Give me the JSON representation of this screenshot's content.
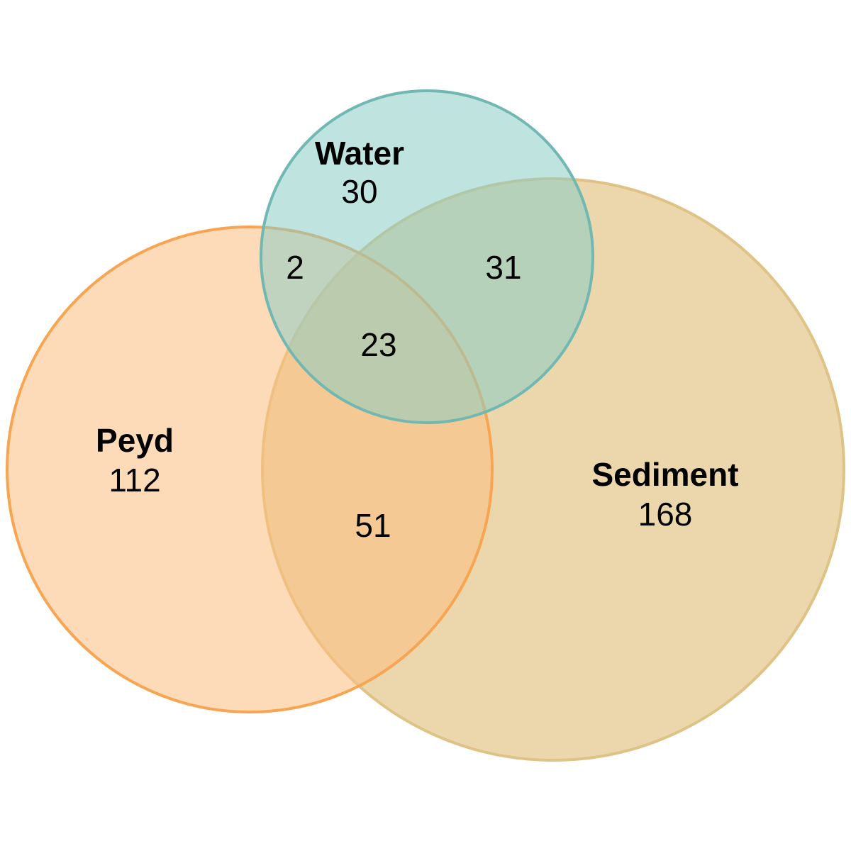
{
  "sets": [
    {
      "id": "peyd",
      "label": "Peyd",
      "only_count": "112",
      "fill": "#FDBE7E",
      "stroke": "#F7A552"
    },
    {
      "id": "sediment",
      "label": "Sediment",
      "only_count": "168",
      "fill": "#E6CA91",
      "stroke": "#DFC386"
    },
    {
      "id": "water",
      "label": "Water",
      "only_count": "30",
      "fill": "#8ACCC4",
      "stroke": "#71B8B3"
    }
  ],
  "intersections": {
    "peyd_water": "2",
    "sediment_water": "31",
    "peyd_sediment_water": "23",
    "peyd_sediment": "51"
  }
}
